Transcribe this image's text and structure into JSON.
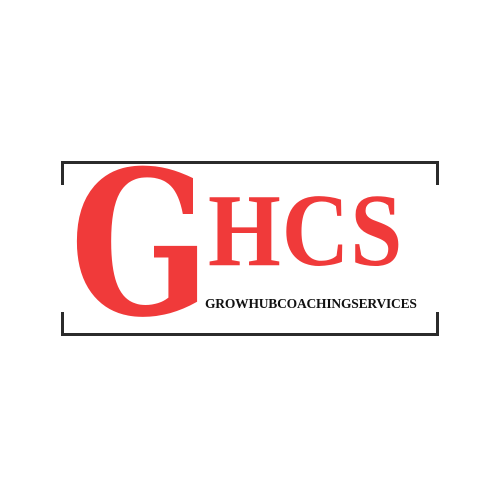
{
  "logo": {
    "initial": "G",
    "acronym": "HCS",
    "tagline": "GROWHUBCOACHINGSERVICES",
    "brand_color": "#f03a3a",
    "frame_color": "#2b2b2b",
    "text_color": "#111111"
  }
}
